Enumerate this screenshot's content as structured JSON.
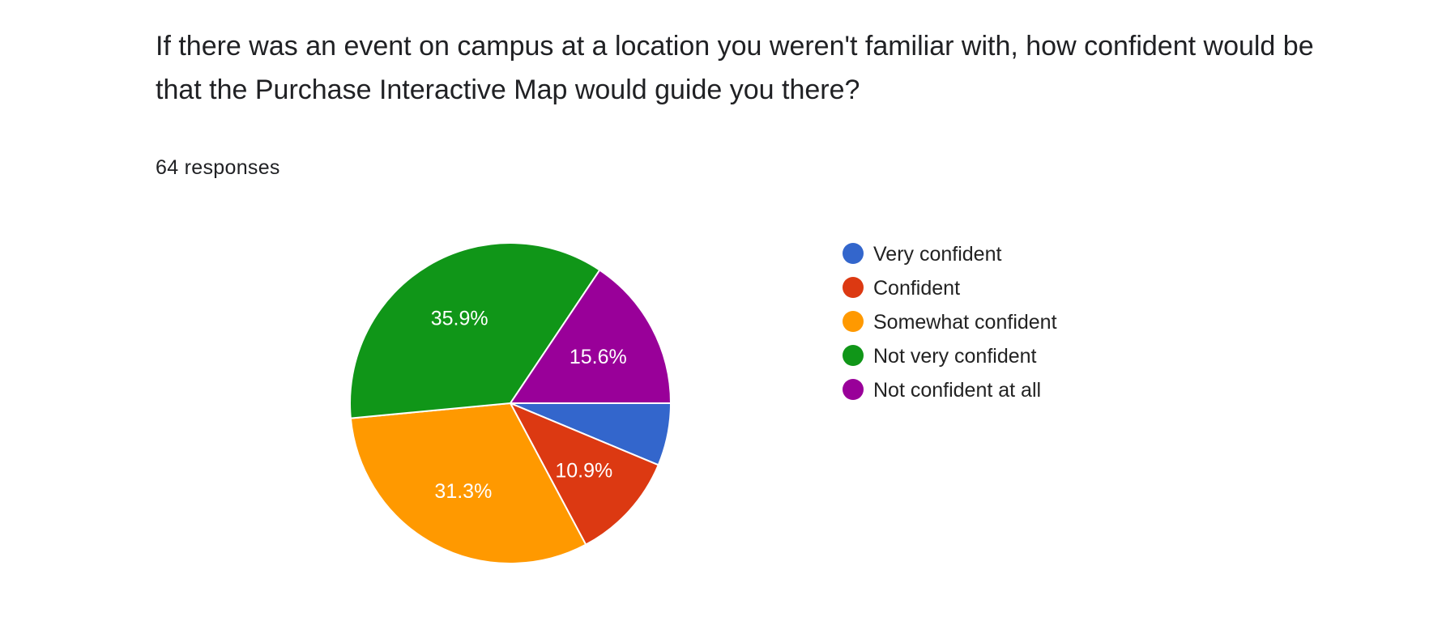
{
  "question": {
    "title": "If there was an event on campus at a location you weren't familiar with, how confident would be that the Purchase Interactive Map would guide you there?",
    "responses": "64 responses"
  },
  "chart_data": {
    "type": "pie",
    "title": "If there was an event on campus at a location you weren't familiar with, how confident would be that the Purchase Interactive Map would guide you there?",
    "total_responses": 64,
    "legend_placement": "right",
    "start_angle": "3 o'clock, clockwise",
    "slices": [
      {
        "label": "Very confident",
        "value": 6.3,
        "display": "",
        "color": "#3366cc"
      },
      {
        "label": "Confident",
        "value": 10.9,
        "display": "10.9%",
        "color": "#dc3912"
      },
      {
        "label": "Somewhat confident",
        "value": 31.3,
        "display": "31.3%",
        "color": "#ff9900"
      },
      {
        "label": "Not very confident",
        "value": 35.9,
        "display": "35.9%",
        "color": "#109618"
      },
      {
        "label": "Not confident at all",
        "value": 15.6,
        "display": "15.6%",
        "color": "#990099"
      }
    ]
  }
}
